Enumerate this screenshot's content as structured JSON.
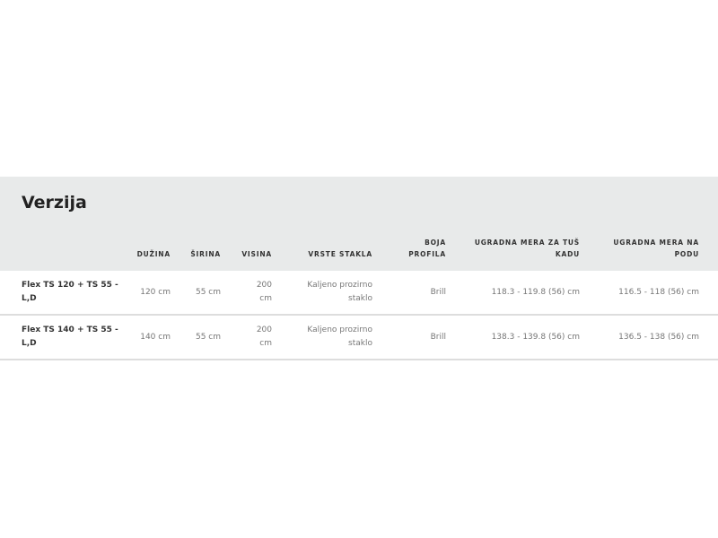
{
  "title": "Verzija",
  "columns": [
    "",
    "DUŽINA",
    "ŠIRINA",
    "VISINA",
    "VRSTE STAKLA",
    "BOJA PROFILA",
    "UGRADNA MERA ZA TUŠ KADU",
    "UGRADNA MERA NA PODU"
  ],
  "rows": [
    [
      "Flex TS 120 + TS 55 - L,D",
      "120 cm",
      "55 cm",
      "200 cm",
      "Kaljeno prozirno staklo",
      "Brill",
      "118.3 - 119.8 (56) cm",
      "116.5 - 118 (56) cm"
    ],
    [
      "Flex TS 140 + TS 55 - L,D",
      "140 cm",
      "55 cm",
      "200 cm",
      "Kaljeno prozirno staklo",
      "Brill",
      "138.3 - 139.8 (56) cm",
      "136.5 - 138 (56) cm"
    ]
  ]
}
